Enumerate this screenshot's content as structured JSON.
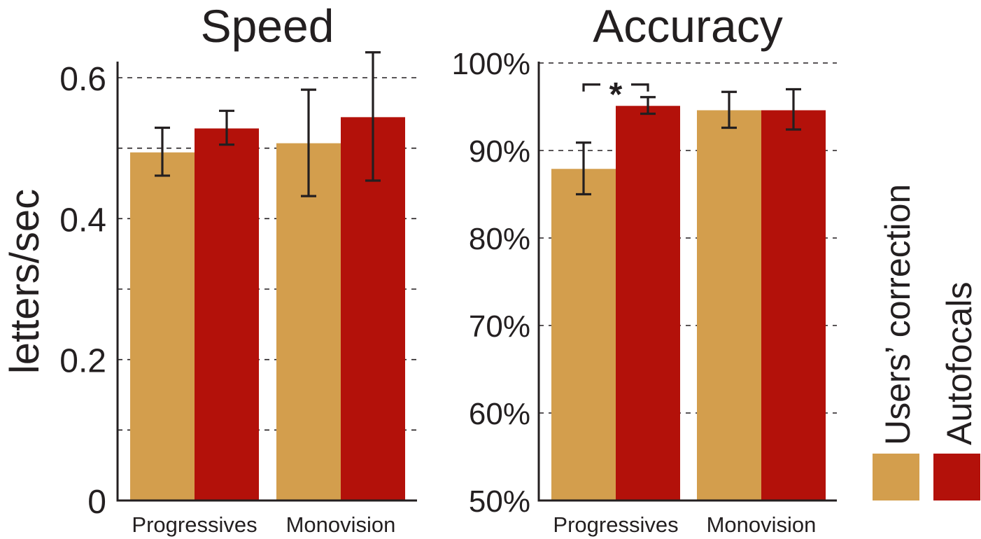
{
  "colors": {
    "users_correction": "#d39e4d",
    "autofocals": "#b3110a",
    "axis": "#231f20",
    "grid": "#231f20"
  },
  "legend": {
    "placement": "right",
    "items": [
      {
        "label": "Users’ correction",
        "color": "#d39e4d"
      },
      {
        "label": "Autofocals",
        "color": "#b3110a"
      }
    ]
  },
  "chart_data": [
    {
      "type": "bar",
      "title": "Speed",
      "ylabel": "letters/sec",
      "ylim": [
        0,
        0.62
      ],
      "yticks": [
        0,
        0.2,
        0.4,
        0.6
      ],
      "yticklabels": [
        "0",
        "0.2",
        "0.4",
        "0.6"
      ],
      "grid": "dashed horizontal at every 0.1",
      "grid_values": [
        0.1,
        0.2,
        0.3,
        0.4,
        0.5,
        0.6
      ],
      "categories": [
        "Progressives",
        "Monovision"
      ],
      "series": [
        {
          "name": "Users’ correction",
          "values": [
            0.494,
            0.507
          ],
          "error_low": [
            0.461,
            0.432
          ],
          "error_high": [
            0.529,
            0.583
          ]
        },
        {
          "name": "Autofocals",
          "values": [
            0.528,
            0.544
          ],
          "error_low": [
            0.505,
            0.454
          ],
          "error_high": [
            0.553,
            0.636
          ]
        }
      ]
    },
    {
      "type": "bar",
      "title": "Accuracy",
      "ylabel": "",
      "ylim": [
        50,
        100
      ],
      "yticks": [
        50,
        60,
        70,
        80,
        90,
        100
      ],
      "yticklabels": [
        "50%",
        "60%",
        "70%",
        "80%",
        "90%",
        "100%"
      ],
      "grid": "dashed horizontal at every 10%",
      "grid_values": [
        60,
        70,
        80,
        90,
        100
      ],
      "categories": [
        "Progressives",
        "Monovision"
      ],
      "series": [
        {
          "name": "Users’ correction",
          "values": [
            87.9,
            94.6
          ],
          "error_low": [
            85.0,
            92.6
          ],
          "error_high": [
            90.9,
            96.7
          ]
        },
        {
          "name": "Autofocals",
          "values": [
            95.1,
            94.6
          ],
          "error_low": [
            94.2,
            92.4
          ],
          "error_high": [
            96.1,
            97.0
          ]
        }
      ],
      "annotations": [
        {
          "label": "*",
          "category": "Progressives",
          "between": "series"
        }
      ]
    }
  ]
}
